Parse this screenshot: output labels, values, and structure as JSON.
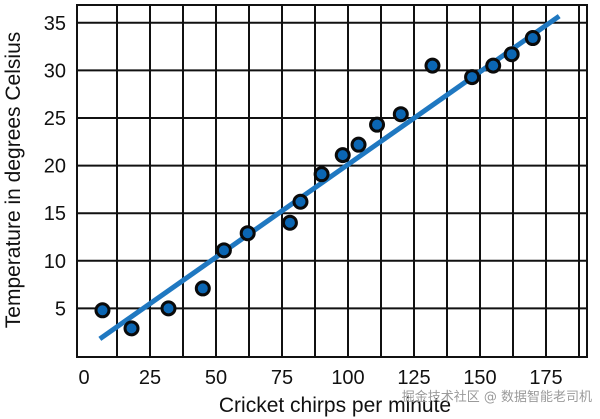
{
  "chart_data": {
    "type": "scatter",
    "title": "",
    "xlabel": "Cricket chirps per minute",
    "ylabel": "Temperature in degrees Celsius",
    "xlim": [
      0,
      185
    ],
    "ylim": [
      0,
      37
    ],
    "xticks": [
      0,
      25,
      50,
      75,
      100,
      125,
      150,
      175
    ],
    "yticks": [
      5,
      10,
      15,
      20,
      25,
      30,
      35
    ],
    "grid": true,
    "legend": "none",
    "series": [
      {
        "marker_color": "#0b66b3",
        "points": [
          {
            "x": 7,
            "y": 4.8
          },
          {
            "x": 18,
            "y": 2.9
          },
          {
            "x": 32,
            "y": 5.0
          },
          {
            "x": 45,
            "y": 7.1
          },
          {
            "x": 53,
            "y": 11.1
          },
          {
            "x": 62,
            "y": 12.9
          },
          {
            "x": 78,
            "y": 14.0
          },
          {
            "x": 82,
            "y": 16.2
          },
          {
            "x": 90,
            "y": 19.1
          },
          {
            "x": 98,
            "y": 21.1
          },
          {
            "x": 104,
            "y": 22.2
          },
          {
            "x": 111,
            "y": 24.3
          },
          {
            "x": 120,
            "y": 25.4
          },
          {
            "x": 132,
            "y": 30.5
          },
          {
            "x": 147,
            "y": 29.3
          },
          {
            "x": 155,
            "y": 30.5
          },
          {
            "x": 162,
            "y": 31.7
          },
          {
            "x": 170,
            "y": 33.4
          }
        ]
      }
    ],
    "trend_line": {
      "x": [
        6,
        180
      ],
      "y": [
        1.8,
        35.7
      ],
      "color": "#1f78c1"
    }
  },
  "watermark": "掘金技术社区 @ 数据智能老司机"
}
